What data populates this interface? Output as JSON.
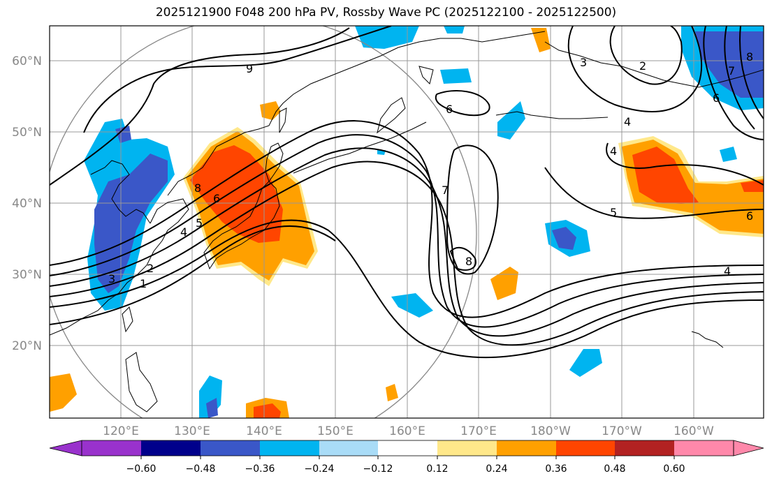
{
  "title": "2025121900 F048 200 hPa PV, Rossby Wave PC (2025122100 - 2025122500)",
  "map": {
    "lat_labels": [
      "60°N",
      "50°N",
      "40°N",
      "30°N",
      "20°N"
    ],
    "lon_labels": [
      "120°E",
      "130°E",
      "140°E",
      "150°E",
      "160°E",
      "170°E",
      "180°W",
      "170°W",
      "160°W"
    ],
    "contour_labels": [
      "9",
      "8",
      "6",
      "6",
      "5",
      "4",
      "3",
      "2",
      "1",
      "7",
      "8",
      "6",
      "5",
      "6",
      "4",
      "4",
      "3",
      "2",
      "7",
      "8",
      "4"
    ],
    "colors": {
      "neg_strong": "#3a57c8",
      "neg_mid": "#00b4f0",
      "neg_weak": "#a9dcf7",
      "pos_weak": "#ffe88a",
      "pos_mid": "#ffa000",
      "pos_strong": "#ff4500",
      "pos_max": "#b22222"
    }
  },
  "colorbar": {
    "ticks": [
      "−0.60",
      "−0.48",
      "−0.36",
      "−0.24",
      "−0.12",
      "0.12",
      "0.24",
      "0.36",
      "0.48",
      "0.60"
    ],
    "colors": [
      "#9932cc",
      "#00008b",
      "#3a57c8",
      "#00b4f0",
      "#a9dcf7",
      "#ffffff",
      "#ffe88a",
      "#ffa000",
      "#ff4500",
      "#b22222",
      "#ff88aa"
    ]
  }
}
